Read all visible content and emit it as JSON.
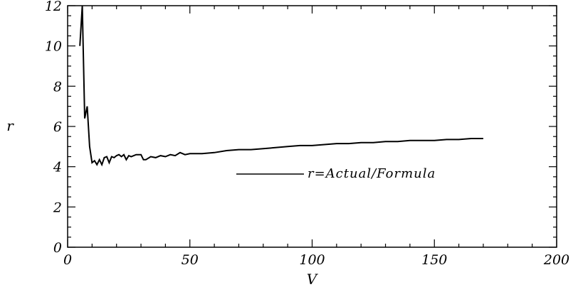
{
  "chart_data": {
    "type": "line",
    "title": "",
    "xlabel": "V",
    "ylabel": "r",
    "xlim": [
      0,
      200
    ],
    "ylim": [
      0,
      12
    ],
    "xticks": [
      "0",
      "50",
      "100",
      "150",
      "200"
    ],
    "yticks": [
      "0",
      "2",
      "4",
      "6",
      "8",
      "10",
      "12"
    ],
    "grid": false,
    "legend_position": "center-right",
    "colors": {
      "line": "#000000",
      "axis": "#000000",
      "background": "#ffffff"
    },
    "series": [
      {
        "name": "r=Actual/Formula",
        "x": [
          5,
          6,
          7,
          8,
          9,
          10,
          11,
          12,
          13,
          14,
          15,
          16,
          17,
          18,
          19,
          20,
          21,
          22,
          23,
          24,
          25,
          26,
          28,
          30,
          31,
          32,
          34,
          36,
          38,
          40,
          42,
          44,
          46,
          48,
          50,
          55,
          60,
          65,
          70,
          75,
          80,
          85,
          90,
          95,
          100,
          105,
          110,
          115,
          120,
          125,
          130,
          135,
          140,
          145,
          150,
          155,
          160,
          165,
          170
        ],
        "y": [
          10.0,
          12.0,
          6.4,
          7.0,
          5.0,
          4.2,
          4.3,
          4.1,
          4.35,
          4.1,
          4.45,
          4.5,
          4.2,
          4.5,
          4.45,
          4.55,
          4.6,
          4.5,
          4.6,
          4.35,
          4.55,
          4.5,
          4.6,
          4.6,
          4.35,
          4.35,
          4.5,
          4.45,
          4.55,
          4.5,
          4.6,
          4.55,
          4.7,
          4.6,
          4.65,
          4.65,
          4.7,
          4.8,
          4.85,
          4.85,
          4.9,
          4.95,
          5.0,
          5.05,
          5.05,
          5.1,
          5.15,
          5.15,
          5.2,
          5.2,
          5.25,
          5.25,
          5.3,
          5.3,
          5.3,
          5.35,
          5.35,
          5.4,
          5.4
        ]
      }
    ]
  }
}
